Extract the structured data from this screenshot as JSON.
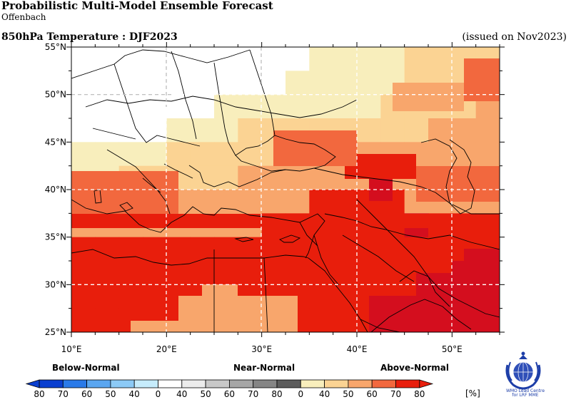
{
  "header": {
    "title": "Probabilistic Multi-Model Ensemble Forecast",
    "subtitle": "Offenbach",
    "variable_season": "850hPa Temperature : DJF2023",
    "issued": "(issued on Nov2023)"
  },
  "map": {
    "region": "Mediterranean / Middle East",
    "lon_range": [
      10,
      55
    ],
    "lat_range": [
      25,
      55
    ],
    "x_ticks": [
      "10°E",
      "20°E",
      "30°E",
      "40°E",
      "50°E"
    ],
    "y_ticks": [
      "25°N",
      "30°N",
      "35°N",
      "40°N",
      "45°N",
      "50°N",
      "55°N"
    ],
    "grid": "dashed",
    "grid_step_deg": 2.5
  },
  "legend": {
    "sections": {
      "below": "Below-Normal",
      "near": "Near-Normal",
      "above": "Above-Normal"
    },
    "labels": [
      "80",
      "70",
      "60",
      "50",
      "40",
      "0",
      "40",
      "50",
      "60",
      "70",
      "80",
      "0",
      "40",
      "50",
      "60",
      "70",
      "80"
    ],
    "unit": "[%]",
    "below_colors": [
      "#0a3fd0",
      "#2a7ae8",
      "#5aa6f0",
      "#8ccaf6",
      "#c6ecfc"
    ],
    "near_colors": [
      "#ececec",
      "#c8c8c8",
      "#a6a6a6",
      "#858585",
      "#5c5c5c"
    ],
    "above_colors": [
      "#f8eebc",
      "#fbd393",
      "#f8a66c",
      "#f2683e",
      "#e81e0c"
    ],
    "cell_colors": [
      "#ffffff",
      "#f8eebc",
      "#fbd393",
      "#f8a66c",
      "#f2683e",
      "#e81e0c",
      "#d40e1e"
    ]
  },
  "logo": {
    "caption": "WMO Lead Centre for LRF MME"
  }
}
